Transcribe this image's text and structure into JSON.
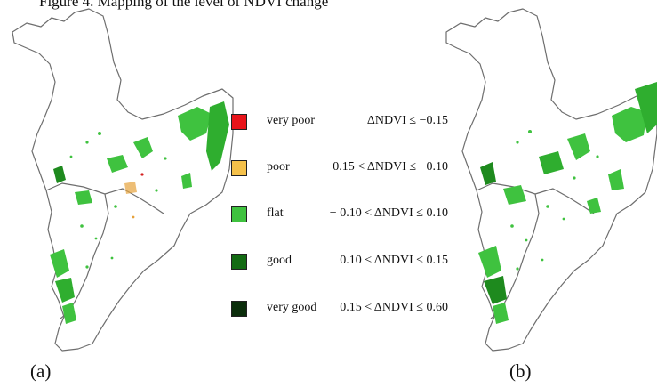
{
  "caption_top": "Figure 4. Mapping of the level of NDVI change",
  "subfigures": {
    "a_label": "(a)",
    "b_label": "(b)"
  },
  "legend": {
    "items": [
      {
        "class": "very poor",
        "range": "ΔNDVI ≤ −0.15",
        "color": "#e8141a"
      },
      {
        "class": "poor",
        "range": "− 0.15 < ΔNDVI ≤ −0.10",
        "color": "#f5c14a"
      },
      {
        "class": "flat",
        "range": "− 0.10 < ΔNDVI ≤ 0.10",
        "color": "#3fc23f"
      },
      {
        "class": "good",
        "range": "0.10 < ΔNDVI ≤ 0.15",
        "color": "#136b13"
      },
      {
        "class": "very good",
        "range": "0.15 < ΔNDVI ≤ 0.60",
        "color": "#0b2e0b"
      }
    ]
  },
  "colors": {
    "boundary": "#6e6e6e",
    "flat": "#3fc23f",
    "good": "#1e8a1e",
    "poor": "#e6a23c",
    "very_poor": "#d42020"
  }
}
